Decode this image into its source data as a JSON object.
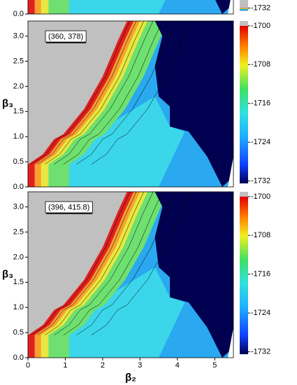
{
  "chart_data": [
    {
      "type": "contour",
      "xlim": [
        0,
        5.5
      ],
      "ylim": [
        0,
        3.3
      ],
      "yticks": [
        {
          "value": 0,
          "label": "0.0"
        }
      ],
      "colorbar": {
        "lim": [
          -1732.5,
          -1699
        ],
        "ticks": [
          -1732
        ]
      }
    },
    {
      "type": "contour",
      "annotation": "(360, 378)",
      "xlim": [
        0,
        5.5
      ],
      "ylim": [
        0,
        3.3
      ],
      "ylabel": "β₃",
      "yticks": [
        {
          "value": 0,
          "label": "0.0"
        },
        {
          "value": 0.5,
          "label": "0.5"
        },
        {
          "value": 1,
          "label": "1.0"
        },
        {
          "value": 1.5,
          "label": "1.5"
        },
        {
          "value": 2,
          "label": "2.0"
        },
        {
          "value": 2.5,
          "label": "2.5"
        },
        {
          "value": 3,
          "label": "3.0"
        }
      ],
      "colorbar": {
        "lim": [
          -1732.5,
          -1699
        ],
        "ticks": [
          -1700,
          -1708,
          -1716,
          -1724,
          -1732
        ]
      }
    },
    {
      "type": "contour",
      "annotation": "(396, 415.8)",
      "xlim": [
        0,
        5.5
      ],
      "ylim": [
        0,
        3.3
      ],
      "ylabel": "β₃",
      "xlabel": "β₂",
      "xticks": [
        0,
        1,
        2,
        3,
        4,
        5
      ],
      "yticks": [
        {
          "value": 0,
          "label": "0.0"
        },
        {
          "value": 0.5,
          "label": "0.5"
        },
        {
          "value": 1,
          "label": "1.0"
        },
        {
          "value": 1.5,
          "label": "1.5"
        },
        {
          "value": 2,
          "label": "2.0"
        },
        {
          "value": 2.5,
          "label": "2.5"
        },
        {
          "value": 3,
          "label": "3.0"
        }
      ],
      "colorbar": {
        "lim": [
          -1732.5,
          -1699
        ],
        "ticks": [
          -1700,
          -1708,
          -1716,
          -1724,
          -1732
        ]
      }
    }
  ]
}
